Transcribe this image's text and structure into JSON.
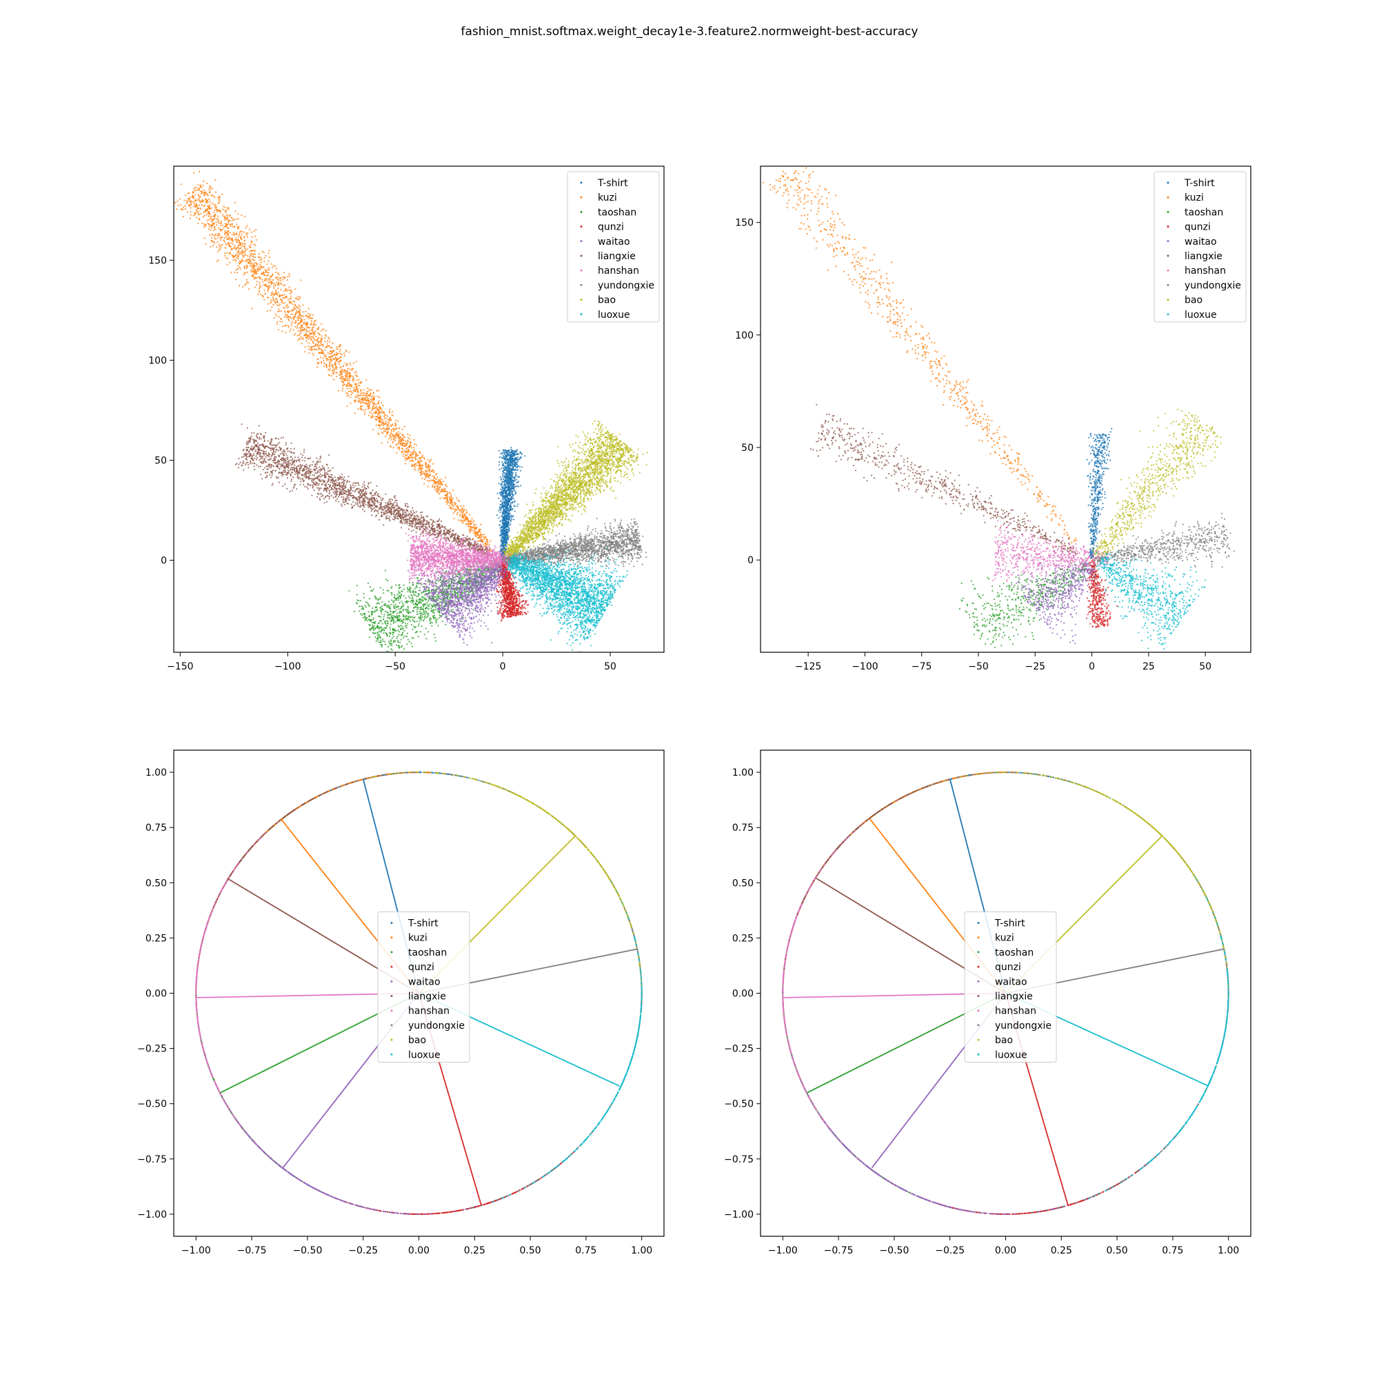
{
  "title": "fashion_mnist.softmax.weight_decay1e-3.feature2.normweight-best-accuracy",
  "colors": [
    "#1f77b4",
    "#ff7f0e",
    "#2ca02c",
    "#d62728",
    "#9467bd",
    "#8c564b",
    "#e377c2",
    "#7f7f7f",
    "#bcbd22",
    "#17becf"
  ],
  "chart_data": [
    {
      "type": "scatter",
      "title": "",
      "xlabel": "",
      "ylabel": "",
      "xlim": [
        -153,
        75
      ],
      "ylim": [
        -46,
        197
      ],
      "xticks": [
        -150,
        -100,
        -50,
        0,
        50
      ],
      "yticks": [
        0,
        50,
        100,
        150
      ],
      "legend": "top-right",
      "series": [
        {
          "name": "T-shirt",
          "color": "#1f77b4",
          "from": [
            0,
            0
          ],
          "to": [
            4,
            55
          ],
          "spread": 1.2,
          "count": 1400
        },
        {
          "name": "kuzi",
          "color": "#ff7f0e",
          "from": [
            -5,
            5
          ],
          "to": [
            -145,
            185
          ],
          "spread": 2.5,
          "count": 2500
        },
        {
          "name": "taoshan",
          "color": "#2ca02c",
          "from": [
            0,
            -2
          ],
          "to": [
            -62,
            -35
          ],
          "spread": 4.5,
          "count": 1400
        },
        {
          "name": "qunzi",
          "color": "#d62728",
          "from": [
            0,
            0
          ],
          "to": [
            5,
            -28
          ],
          "spread": 1.6,
          "count": 1000
        },
        {
          "name": "waitao",
          "color": "#9467bd",
          "from": [
            0,
            -3
          ],
          "to": [
            -30,
            -25
          ],
          "spread": 5,
          "count": 1400
        },
        {
          "name": "liangxie",
          "color": "#8c564b",
          "from": [
            -5,
            3
          ],
          "to": [
            -120,
            57
          ],
          "spread": 2.5,
          "count": 2000
        },
        {
          "name": "hanshan",
          "color": "#e377c2",
          "from": [
            8,
            0
          ],
          "to": [
            -43,
            2
          ],
          "spread": 3,
          "count": 2000
        },
        {
          "name": "yundongxie",
          "color": "#7f7f7f",
          "from": [
            0,
            0
          ],
          "to": [
            64,
            10
          ],
          "spread": 2.5,
          "count": 1800
        },
        {
          "name": "bao",
          "color": "#bcbd22",
          "from": [
            2,
            2
          ],
          "to": [
            55,
            60
          ],
          "spread": 3.5,
          "count": 2600
        },
        {
          "name": "luoxue",
          "color": "#17becf",
          "from": [
            3,
            0
          ],
          "to": [
            48,
            -25
          ],
          "spread": 5,
          "count": 2500
        }
      ]
    },
    {
      "type": "scatter",
      "title": "",
      "xlabel": "",
      "ylabel": "",
      "xlim": [
        -146,
        70
      ],
      "ylim": [
        -41,
        175
      ],
      "xticks": [
        -125,
        -100,
        -75,
        -50,
        -25,
        0,
        25,
        50
      ],
      "yticks": [
        0,
        50,
        100,
        150
      ],
      "legend": "top-right",
      "series": [
        {
          "name": "T-shirt",
          "color": "#1f77b4",
          "from": [
            0,
            0
          ],
          "to": [
            4,
            56
          ],
          "spread": 1.2,
          "count": 500
        },
        {
          "name": "kuzi",
          "color": "#ff7f0e",
          "from": [
            -5,
            5
          ],
          "to": [
            -137,
            174
          ],
          "spread": 2.5,
          "count": 700
        },
        {
          "name": "taoshan",
          "color": "#2ca02c",
          "from": [
            0,
            -2
          ],
          "to": [
            -52,
            -30
          ],
          "spread": 4,
          "count": 500
        },
        {
          "name": "qunzi",
          "color": "#d62728",
          "from": [
            0,
            0
          ],
          "to": [
            4,
            -30
          ],
          "spread": 1.5,
          "count": 400
        },
        {
          "name": "waitao",
          "color": "#9467bd",
          "from": [
            0,
            -3
          ],
          "to": [
            -25,
            -23
          ],
          "spread": 4.5,
          "count": 500
        },
        {
          "name": "liangxie",
          "color": "#8c564b",
          "from": [
            -5,
            3
          ],
          "to": [
            -120,
            58
          ],
          "spread": 2.5,
          "count": 600
        },
        {
          "name": "hanshan",
          "color": "#e377c2",
          "from": [
            8,
            0
          ],
          "to": [
            -43,
            3
          ],
          "spread": 3,
          "count": 600
        },
        {
          "name": "yundongxie",
          "color": "#7f7f7f",
          "from": [
            0,
            0
          ],
          "to": [
            60,
            10
          ],
          "spread": 2.5,
          "count": 600
        },
        {
          "name": "bao",
          "color": "#bcbd22",
          "from": [
            2,
            2
          ],
          "to": [
            50,
            62
          ],
          "spread": 3.5,
          "count": 700
        },
        {
          "name": "luoxue",
          "color": "#17becf",
          "from": [
            3,
            0
          ],
          "to": [
            40,
            -26
          ],
          "spread": 4.5,
          "count": 700
        }
      ]
    },
    {
      "type": "scatter",
      "title": "",
      "xlabel": "",
      "ylabel": "",
      "xlim": [
        -1.1,
        1.1
      ],
      "ylim": [
        -1.1,
        1.1
      ],
      "xticks": [
        -1.0,
        -0.75,
        -0.5,
        -0.25,
        0.0,
        0.25,
        0.5,
        0.75,
        1.0
      ],
      "yticks": [
        -1.0,
        -0.75,
        -0.5,
        -0.25,
        0.0,
        0.25,
        0.5,
        0.75,
        1.0
      ],
      "legend": "center",
      "series": [
        {
          "name": "T-shirt",
          "color": "#1f77b4",
          "weight": [
            -0.25,
            0.97
          ]
        },
        {
          "name": "kuzi",
          "color": "#ff7f0e",
          "weight": [
            -0.62,
            0.79
          ]
        },
        {
          "name": "taoshan",
          "color": "#2ca02c",
          "weight": [
            -0.89,
            -0.45
          ]
        },
        {
          "name": "qunzi",
          "color": "#d62728",
          "weight": [
            0.28,
            -0.96
          ]
        },
        {
          "name": "waitao",
          "color": "#9467bd",
          "weight": [
            -0.61,
            -0.79
          ]
        },
        {
          "name": "liangxie",
          "color": "#8c564b",
          "weight": [
            -0.86,
            0.52
          ]
        },
        {
          "name": "hanshan",
          "color": "#e377c2",
          "weight": [
            -1.0,
            -0.02
          ]
        },
        {
          "name": "yundongxie",
          "color": "#7f7f7f",
          "weight": [
            0.98,
            0.2
          ]
        },
        {
          "name": "bao",
          "color": "#bcbd22",
          "weight": [
            0.7,
            0.71
          ]
        },
        {
          "name": "luoxue",
          "color": "#17becf",
          "weight": [
            0.9,
            -0.42
          ]
        }
      ]
    },
    {
      "type": "scatter",
      "title": "",
      "xlabel": "",
      "ylabel": "",
      "xlim": [
        -1.1,
        1.1
      ],
      "ylim": [
        -1.1,
        1.1
      ],
      "xticks": [
        -1.0,
        -0.75,
        -0.5,
        -0.25,
        0.0,
        0.25,
        0.5,
        0.75,
        1.0
      ],
      "yticks": [
        -1.0,
        -0.75,
        -0.5,
        -0.25,
        0.0,
        0.25,
        0.5,
        0.75,
        1.0
      ],
      "legend": "center",
      "series": [
        {
          "name": "T-shirt",
          "color": "#1f77b4",
          "weight": [
            -0.25,
            0.97
          ]
        },
        {
          "name": "kuzi",
          "color": "#ff7f0e",
          "weight": [
            -0.61,
            0.79
          ]
        },
        {
          "name": "taoshan",
          "color": "#2ca02c",
          "weight": [
            -0.89,
            -0.45
          ]
        },
        {
          "name": "qunzi",
          "color": "#d62728",
          "weight": [
            0.28,
            -0.96
          ]
        },
        {
          "name": "waitao",
          "color": "#9467bd",
          "weight": [
            -0.6,
            -0.79
          ]
        },
        {
          "name": "liangxie",
          "color": "#8c564b",
          "weight": [
            -0.85,
            0.52
          ]
        },
        {
          "name": "hanshan",
          "color": "#e377c2",
          "weight": [
            -1.0,
            -0.02
          ]
        },
        {
          "name": "yundongxie",
          "color": "#7f7f7f",
          "weight": [
            0.98,
            0.2
          ]
        },
        {
          "name": "bao",
          "color": "#bcbd22",
          "weight": [
            0.7,
            0.71
          ]
        },
        {
          "name": "luoxue",
          "color": "#17becf",
          "weight": [
            0.91,
            -0.42
          ]
        }
      ]
    }
  ]
}
